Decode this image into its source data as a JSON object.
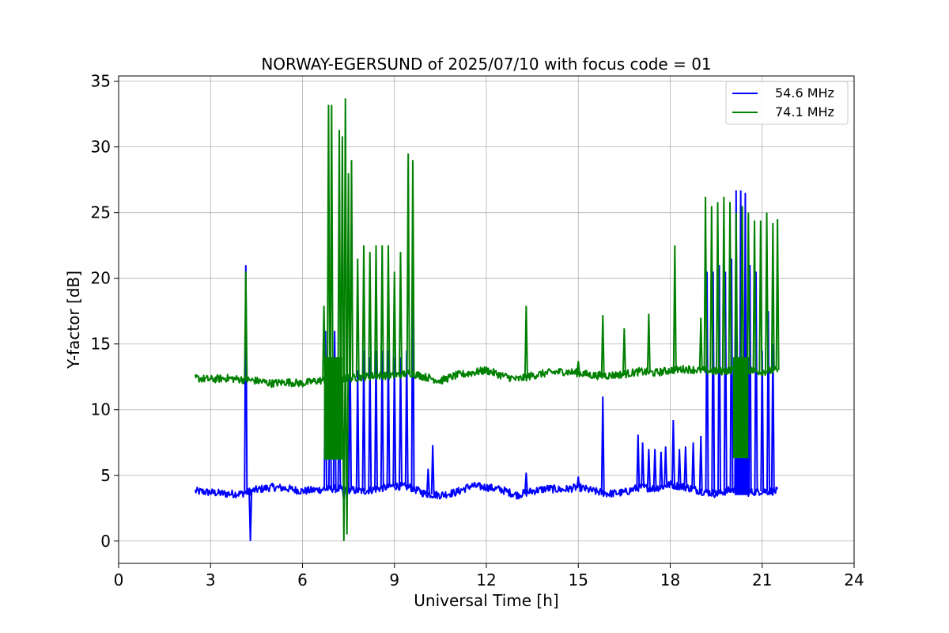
{
  "chart_data": {
    "type": "line",
    "title": "NORWAY-EGERSUND of 2025/07/10 with focus code = 01",
    "xlabel": "Universal Time [h]",
    "ylabel": "Y-factor [dB]",
    "xlim": [
      0,
      24
    ],
    "ylim": [
      -1.7,
      35.4
    ],
    "xticks": [
      0,
      3,
      6,
      9,
      12,
      15,
      18,
      21,
      24
    ],
    "yticks": [
      0,
      5,
      10,
      15,
      20,
      25,
      30,
      35
    ],
    "grid": true,
    "legend_position": "top-right",
    "series": [
      {
        "name": "54.6 MHz",
        "color": "#0000ff",
        "baseline": [
          [
            2.5,
            3.8
          ],
          [
            3.0,
            3.7
          ],
          [
            3.5,
            3.6
          ],
          [
            4.0,
            3.6
          ],
          [
            4.5,
            3.9
          ],
          [
            5.0,
            4.1
          ],
          [
            5.5,
            4.0
          ],
          [
            6.0,
            3.8
          ],
          [
            6.5,
            3.9
          ],
          [
            7.0,
            4.0
          ],
          [
            7.5,
            3.9
          ],
          [
            8.0,
            3.8
          ],
          [
            8.5,
            4.0
          ],
          [
            9.0,
            4.2
          ],
          [
            9.5,
            4.1
          ],
          [
            10.0,
            3.6
          ],
          [
            10.5,
            3.5
          ],
          [
            11.0,
            3.7
          ],
          [
            11.5,
            4.2
          ],
          [
            12.0,
            4.1
          ],
          [
            12.5,
            3.9
          ],
          [
            13.0,
            3.5
          ],
          [
            13.5,
            3.8
          ],
          [
            14.0,
            4.0
          ],
          [
            14.5,
            3.9
          ],
          [
            15.0,
            4.1
          ],
          [
            15.5,
            3.8
          ],
          [
            16.0,
            3.6
          ],
          [
            16.5,
            3.7
          ],
          [
            17.0,
            4.1
          ],
          [
            17.5,
            4.0
          ],
          [
            18.0,
            4.3
          ],
          [
            18.5,
            4.1
          ],
          [
            19.0,
            3.8
          ],
          [
            19.5,
            3.6
          ],
          [
            20.0,
            3.9
          ],
          [
            20.5,
            3.7
          ],
          [
            21.0,
            3.8
          ],
          [
            21.5,
            3.8
          ]
        ],
        "spikes": [
          [
            4.15,
            21.0
          ],
          [
            4.3,
            0.0
          ],
          [
            6.75,
            16.0
          ],
          [
            6.9,
            15.0
          ],
          [
            7.05,
            16.0
          ],
          [
            7.2,
            12.0
          ],
          [
            7.35,
            3.0
          ],
          [
            7.55,
            15.5
          ],
          [
            7.8,
            13.0
          ],
          [
            8.0,
            14.5
          ],
          [
            8.2,
            14.0
          ],
          [
            8.4,
            14.5
          ],
          [
            8.6,
            14.5
          ],
          [
            8.8,
            14.5
          ],
          [
            9.0,
            14.0
          ],
          [
            9.2,
            14.0
          ],
          [
            9.4,
            14.5
          ],
          [
            9.6,
            23.0
          ],
          [
            10.1,
            5.5
          ],
          [
            10.25,
            7.3
          ],
          [
            13.3,
            5.2
          ],
          [
            15.0,
            4.9
          ],
          [
            15.8,
            11.0
          ],
          [
            16.95,
            8.1
          ],
          [
            17.1,
            7.5
          ],
          [
            17.3,
            7.0
          ],
          [
            17.5,
            7.0
          ],
          [
            17.7,
            6.8
          ],
          [
            17.85,
            7.2
          ],
          [
            18.1,
            9.2
          ],
          [
            18.3,
            7.0
          ],
          [
            18.5,
            7.2
          ],
          [
            18.75,
            7.5
          ],
          [
            19.0,
            8.0
          ],
          [
            19.2,
            20.5
          ],
          [
            19.4,
            20.5
          ],
          [
            19.6,
            21.0
          ],
          [
            19.8,
            20.5
          ],
          [
            20.0,
            21.5
          ],
          [
            20.15,
            26.7
          ],
          [
            20.3,
            26.7
          ],
          [
            20.45,
            26.5
          ],
          [
            20.6,
            21.0
          ],
          [
            20.8,
            20.5
          ],
          [
            21.0,
            14.5
          ],
          [
            21.2,
            17.5
          ],
          [
            21.35,
            15.0
          ]
        ],
        "blocks": [
          [
            20.1,
            20.6,
            3.5,
            14.0
          ]
        ]
      },
      {
        "name": "74.1 MHz",
        "color": "#008000",
        "baseline": [
          [
            2.5,
            12.4
          ],
          [
            3.0,
            12.3
          ],
          [
            3.5,
            12.4
          ],
          [
            4.0,
            12.3
          ],
          [
            4.5,
            12.2
          ],
          [
            5.0,
            12.0
          ],
          [
            5.5,
            12.1
          ],
          [
            6.0,
            12.0
          ],
          [
            6.5,
            12.2
          ],
          [
            7.0,
            12.3
          ],
          [
            7.5,
            12.4
          ],
          [
            8.0,
            12.5
          ],
          [
            8.5,
            12.6
          ],
          [
            9.0,
            12.6
          ],
          [
            9.5,
            12.8
          ],
          [
            10.0,
            12.5
          ],
          [
            10.5,
            12.2
          ],
          [
            11.0,
            12.6
          ],
          [
            11.5,
            12.8
          ],
          [
            12.0,
            13.0
          ],
          [
            12.5,
            12.6
          ],
          [
            13.0,
            12.3
          ],
          [
            13.5,
            12.6
          ],
          [
            14.0,
            12.8
          ],
          [
            14.5,
            12.9
          ],
          [
            15.0,
            12.8
          ],
          [
            15.5,
            12.6
          ],
          [
            16.0,
            12.6
          ],
          [
            16.5,
            12.7
          ],
          [
            17.0,
            12.9
          ],
          [
            17.5,
            12.8
          ],
          [
            18.0,
            13.0
          ],
          [
            18.5,
            13.1
          ],
          [
            19.0,
            13.0
          ],
          [
            19.5,
            12.9
          ],
          [
            20.0,
            13.0
          ],
          [
            20.5,
            13.0
          ],
          [
            21.0,
            12.9
          ],
          [
            21.5,
            13.0
          ]
        ],
        "spikes": [
          [
            4.15,
            20.5
          ],
          [
            6.7,
            17.9
          ],
          [
            6.85,
            33.2
          ],
          [
            6.95,
            33.2
          ],
          [
            7.2,
            31.3
          ],
          [
            7.3,
            30.8
          ],
          [
            7.4,
            33.7
          ],
          [
            7.5,
            28.0
          ],
          [
            7.6,
            29.0
          ],
          [
            7.8,
            21.5
          ],
          [
            8.0,
            22.5
          ],
          [
            8.2,
            22.0
          ],
          [
            8.4,
            22.5
          ],
          [
            8.6,
            22.5
          ],
          [
            8.8,
            22.5
          ],
          [
            9.0,
            20.5
          ],
          [
            9.2,
            22.0
          ],
          [
            9.45,
            29.5
          ],
          [
            9.6,
            29.0
          ],
          [
            13.3,
            17.9
          ],
          [
            15.0,
            13.7
          ],
          [
            15.8,
            17.2
          ],
          [
            16.5,
            16.2
          ],
          [
            17.3,
            17.3
          ],
          [
            18.15,
            22.5
          ],
          [
            19.0,
            17.0
          ],
          [
            19.15,
            26.2
          ],
          [
            19.35,
            25.5
          ],
          [
            19.55,
            25.8
          ],
          [
            19.75,
            26.2
          ],
          [
            19.95,
            25.8
          ],
          [
            20.15,
            25.0
          ],
          [
            20.35,
            25.5
          ],
          [
            20.55,
            25.0
          ],
          [
            20.75,
            24.4
          ],
          [
            20.95,
            24.4
          ],
          [
            21.15,
            25.0
          ],
          [
            21.35,
            24.2
          ],
          [
            21.5,
            24.5
          ]
        ],
        "dips": [
          [
            7.35,
            0.0
          ],
          [
            7.45,
            0.5
          ]
        ],
        "blocks": [
          [
            6.7,
            7.3,
            6.2,
            14.0
          ],
          [
            20.05,
            20.55,
            6.3,
            14.0
          ]
        ]
      }
    ]
  }
}
